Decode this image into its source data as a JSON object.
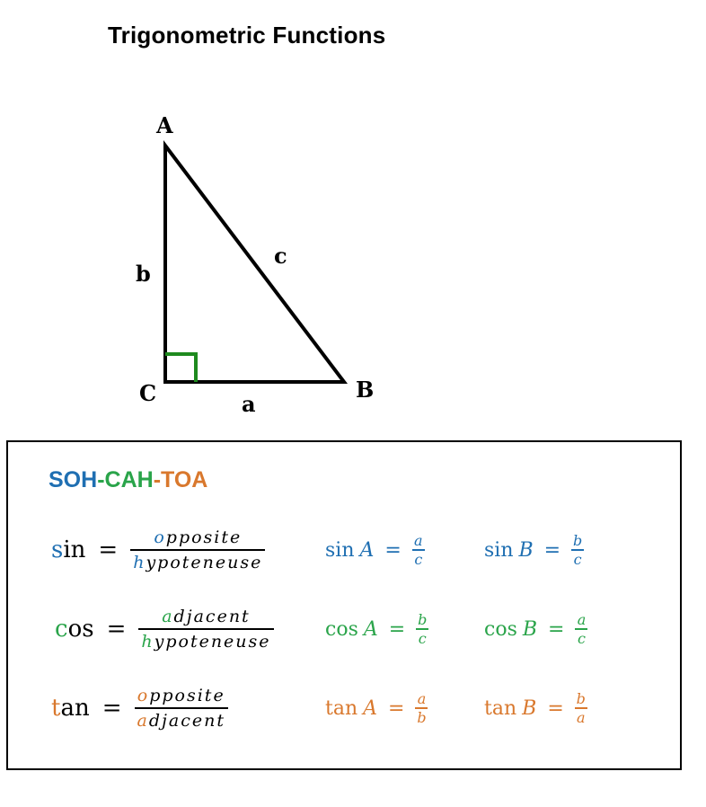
{
  "title": "Trigonometric Functions",
  "triangle": {
    "vertices": {
      "A": "A",
      "B": "B",
      "C": "C"
    },
    "sides": {
      "a": "a",
      "b": "b",
      "c": "c"
    },
    "right_angle_color": "#1e8a1e"
  },
  "mnemonic": {
    "soh": "SOH",
    "dash1": "-",
    "cah": "CAH",
    "dash2": "-",
    "toa": "TOA"
  },
  "colors": {
    "sin": "#1f6fb2",
    "cos": "#2aa44a",
    "tan": "#d9782d"
  },
  "formulas": {
    "sin": {
      "first_letter": "s",
      "rest": "in",
      "eq": "=",
      "num_first": "o",
      "num_rest": "pposite",
      "den_first": "h",
      "den_rest": "ypoteneuse"
    },
    "cos": {
      "first_letter": "c",
      "rest": "os",
      "eq": "=",
      "num_first": "a",
      "num_rest": "djacent",
      "den_first": "h",
      "den_rest": "ypoteneuse"
    },
    "tan": {
      "first_letter": "t",
      "rest": "an",
      "eq": "=",
      "num_first": "o",
      "num_rest": "pposite",
      "den_first": "a",
      "den_rest": "djacent"
    }
  },
  "angle_formulas": {
    "sinA": {
      "fn": "sin",
      "var": "A",
      "eq": "=",
      "num": "a",
      "den": "c"
    },
    "sinB": {
      "fn": "sin",
      "var": "B",
      "eq": "=",
      "num": "b",
      "den": "c"
    },
    "cosA": {
      "fn": "cos",
      "var": "A",
      "eq": "=",
      "num": "b",
      "den": "c"
    },
    "cosB": {
      "fn": "cos",
      "var": "B",
      "eq": "=",
      "num": "a",
      "den": "c"
    },
    "tanA": {
      "fn": "tan",
      "var": "A",
      "eq": "=",
      "num": "a",
      "den": "b"
    },
    "tanB": {
      "fn": "tan",
      "var": "B",
      "eq": "=",
      "num": "b",
      "den": "a"
    }
  }
}
